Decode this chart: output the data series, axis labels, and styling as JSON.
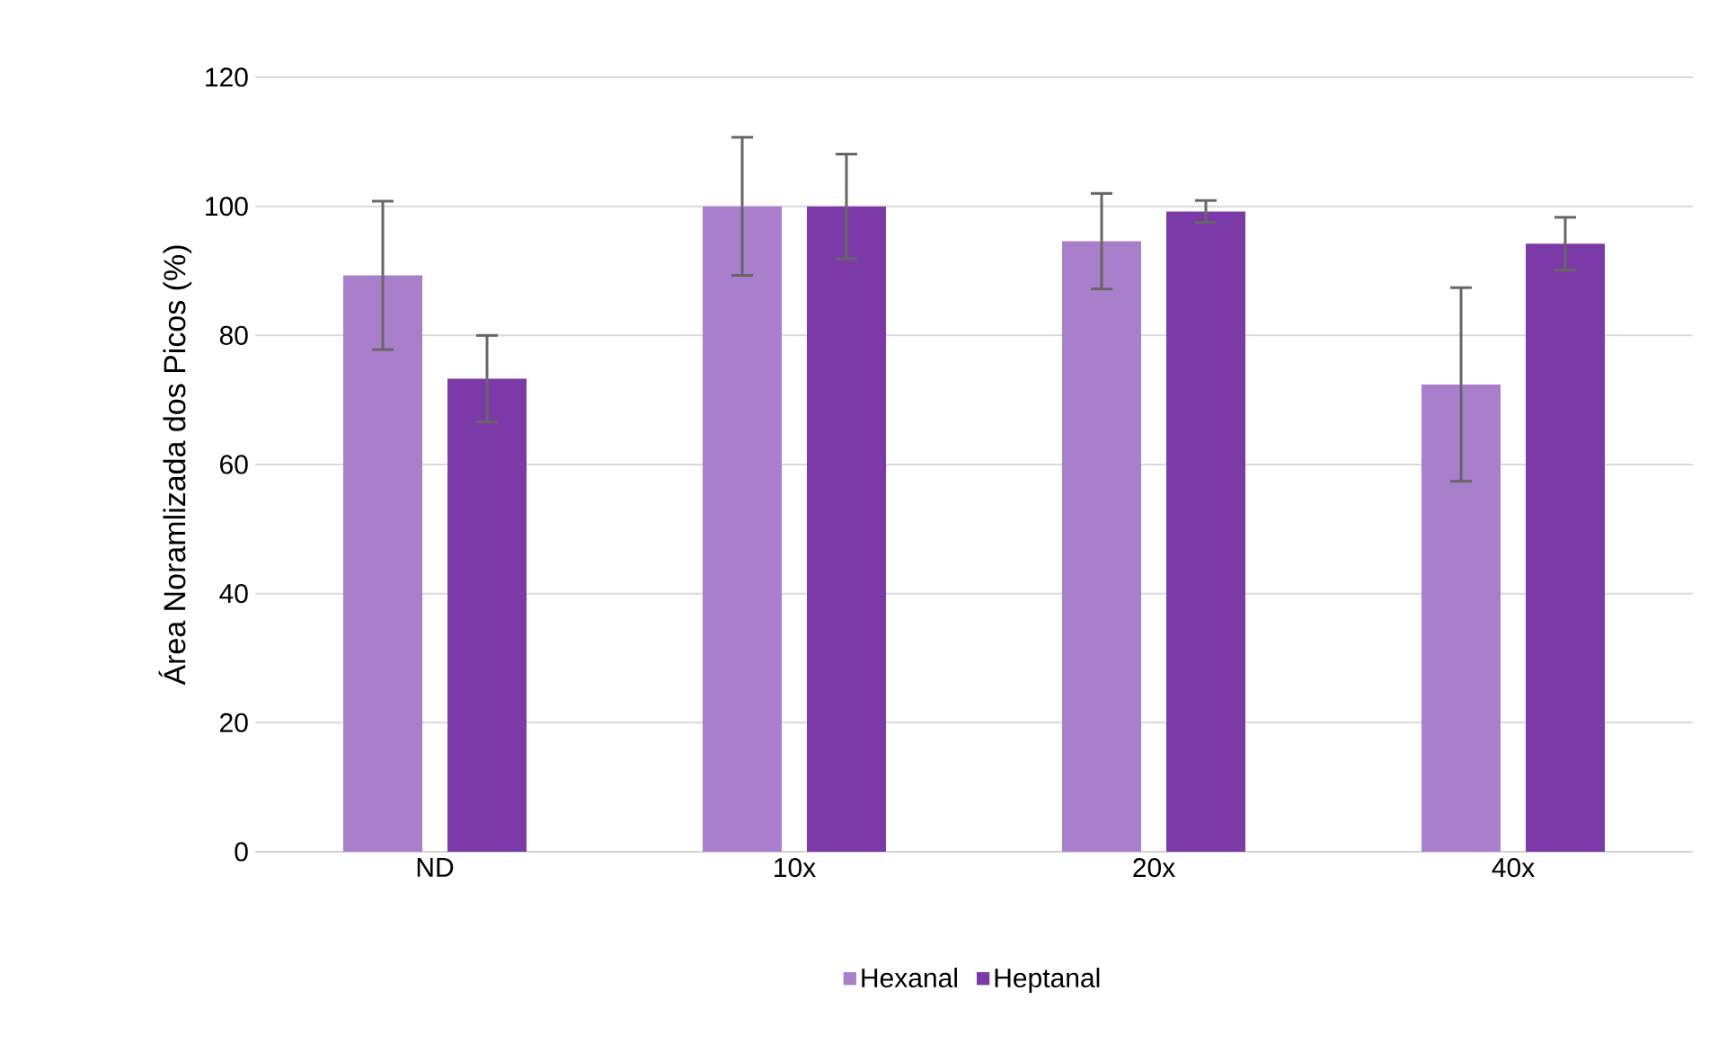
{
  "chart_data": {
    "type": "bar",
    "ylabel": "Área Noramlizada dos Picos (%)",
    "categories": [
      "ND",
      "10x",
      "20x",
      "40x"
    ],
    "series": [
      {
        "name": "Hexanal",
        "color": "#a97fcc",
        "values": [
          89.3,
          100,
          94.6,
          72.4
        ],
        "errors": [
          11.5,
          10.7,
          7.4,
          15
        ]
      },
      {
        "name": "Heptanal",
        "color": "#7b3aa8",
        "values": [
          73.3,
          100,
          99.2,
          94.2
        ],
        "errors": [
          6.7,
          8.1,
          1.7,
          4.1
        ]
      }
    ],
    "ylim": [
      0,
      120
    ],
    "yticks": [
      0,
      20,
      40,
      60,
      80,
      100,
      120
    ],
    "grid": "y",
    "legend": "bottom"
  }
}
